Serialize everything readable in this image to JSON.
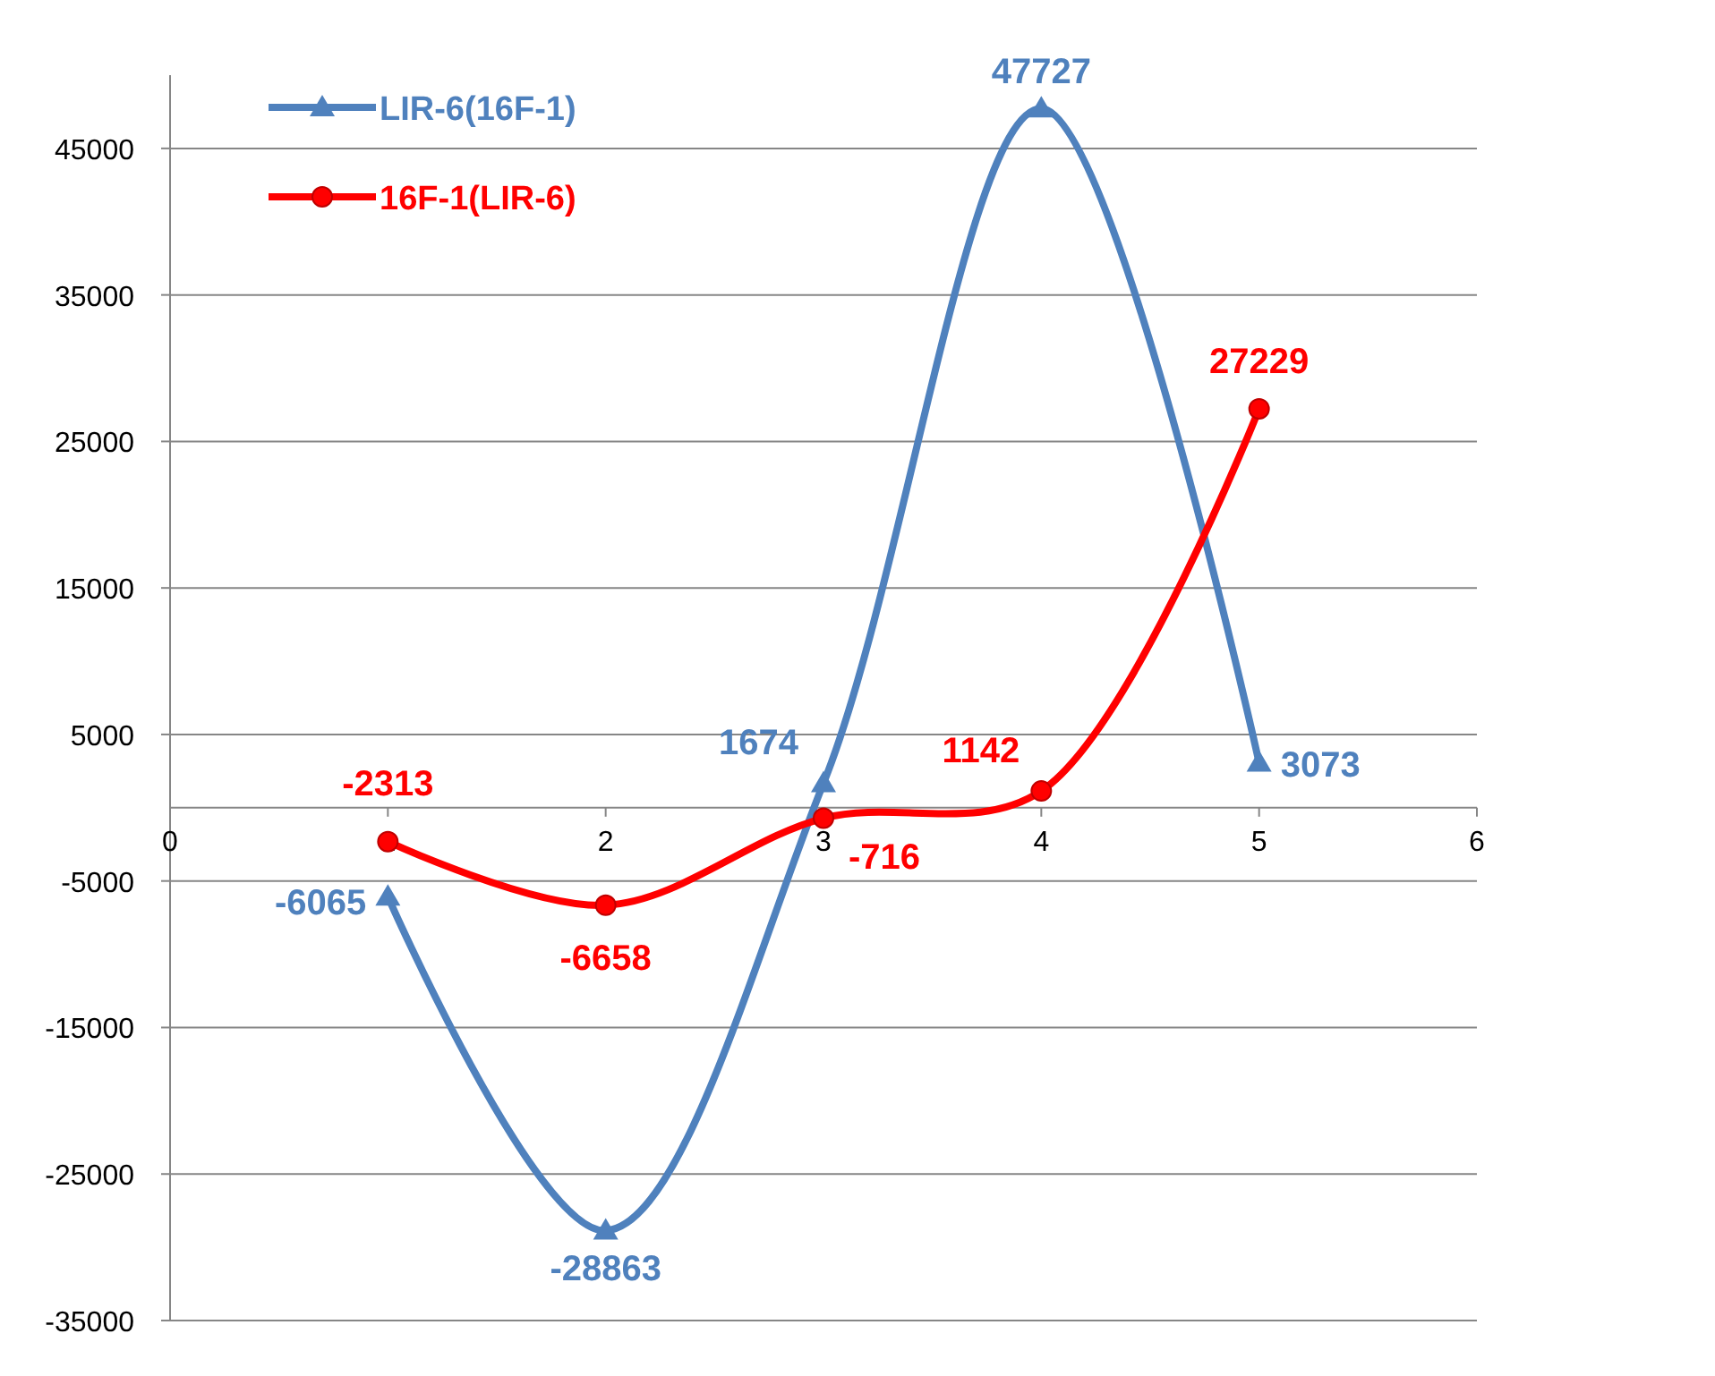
{
  "chart_data": {
    "type": "line",
    "x": [
      1,
      2,
      3,
      4,
      5
    ],
    "xlim": [
      0,
      6
    ],
    "xticks": [
      0,
      1,
      2,
      3,
      4,
      5,
      6
    ],
    "ylim": [
      -35000,
      50000
    ],
    "yticks": [
      -35000,
      -25000,
      -15000,
      -5000,
      5000,
      15000,
      25000,
      35000,
      45000
    ],
    "grid": "y",
    "legend": "top left",
    "data_labels": true,
    "line_style": "solid",
    "series": [
      {
        "name": "LIR-6(16F-1)",
        "color": "#4f81bd",
        "marker": "triangle",
        "values": [
          -6065,
          -28863,
          1674,
          47727,
          3073
        ]
      },
      {
        "name": "16F-1(LIR-6)",
        "color": "#ff0000",
        "marker": "circle",
        "values": [
          -2313,
          -6658,
          -716,
          1142,
          27229
        ]
      }
    ]
  }
}
